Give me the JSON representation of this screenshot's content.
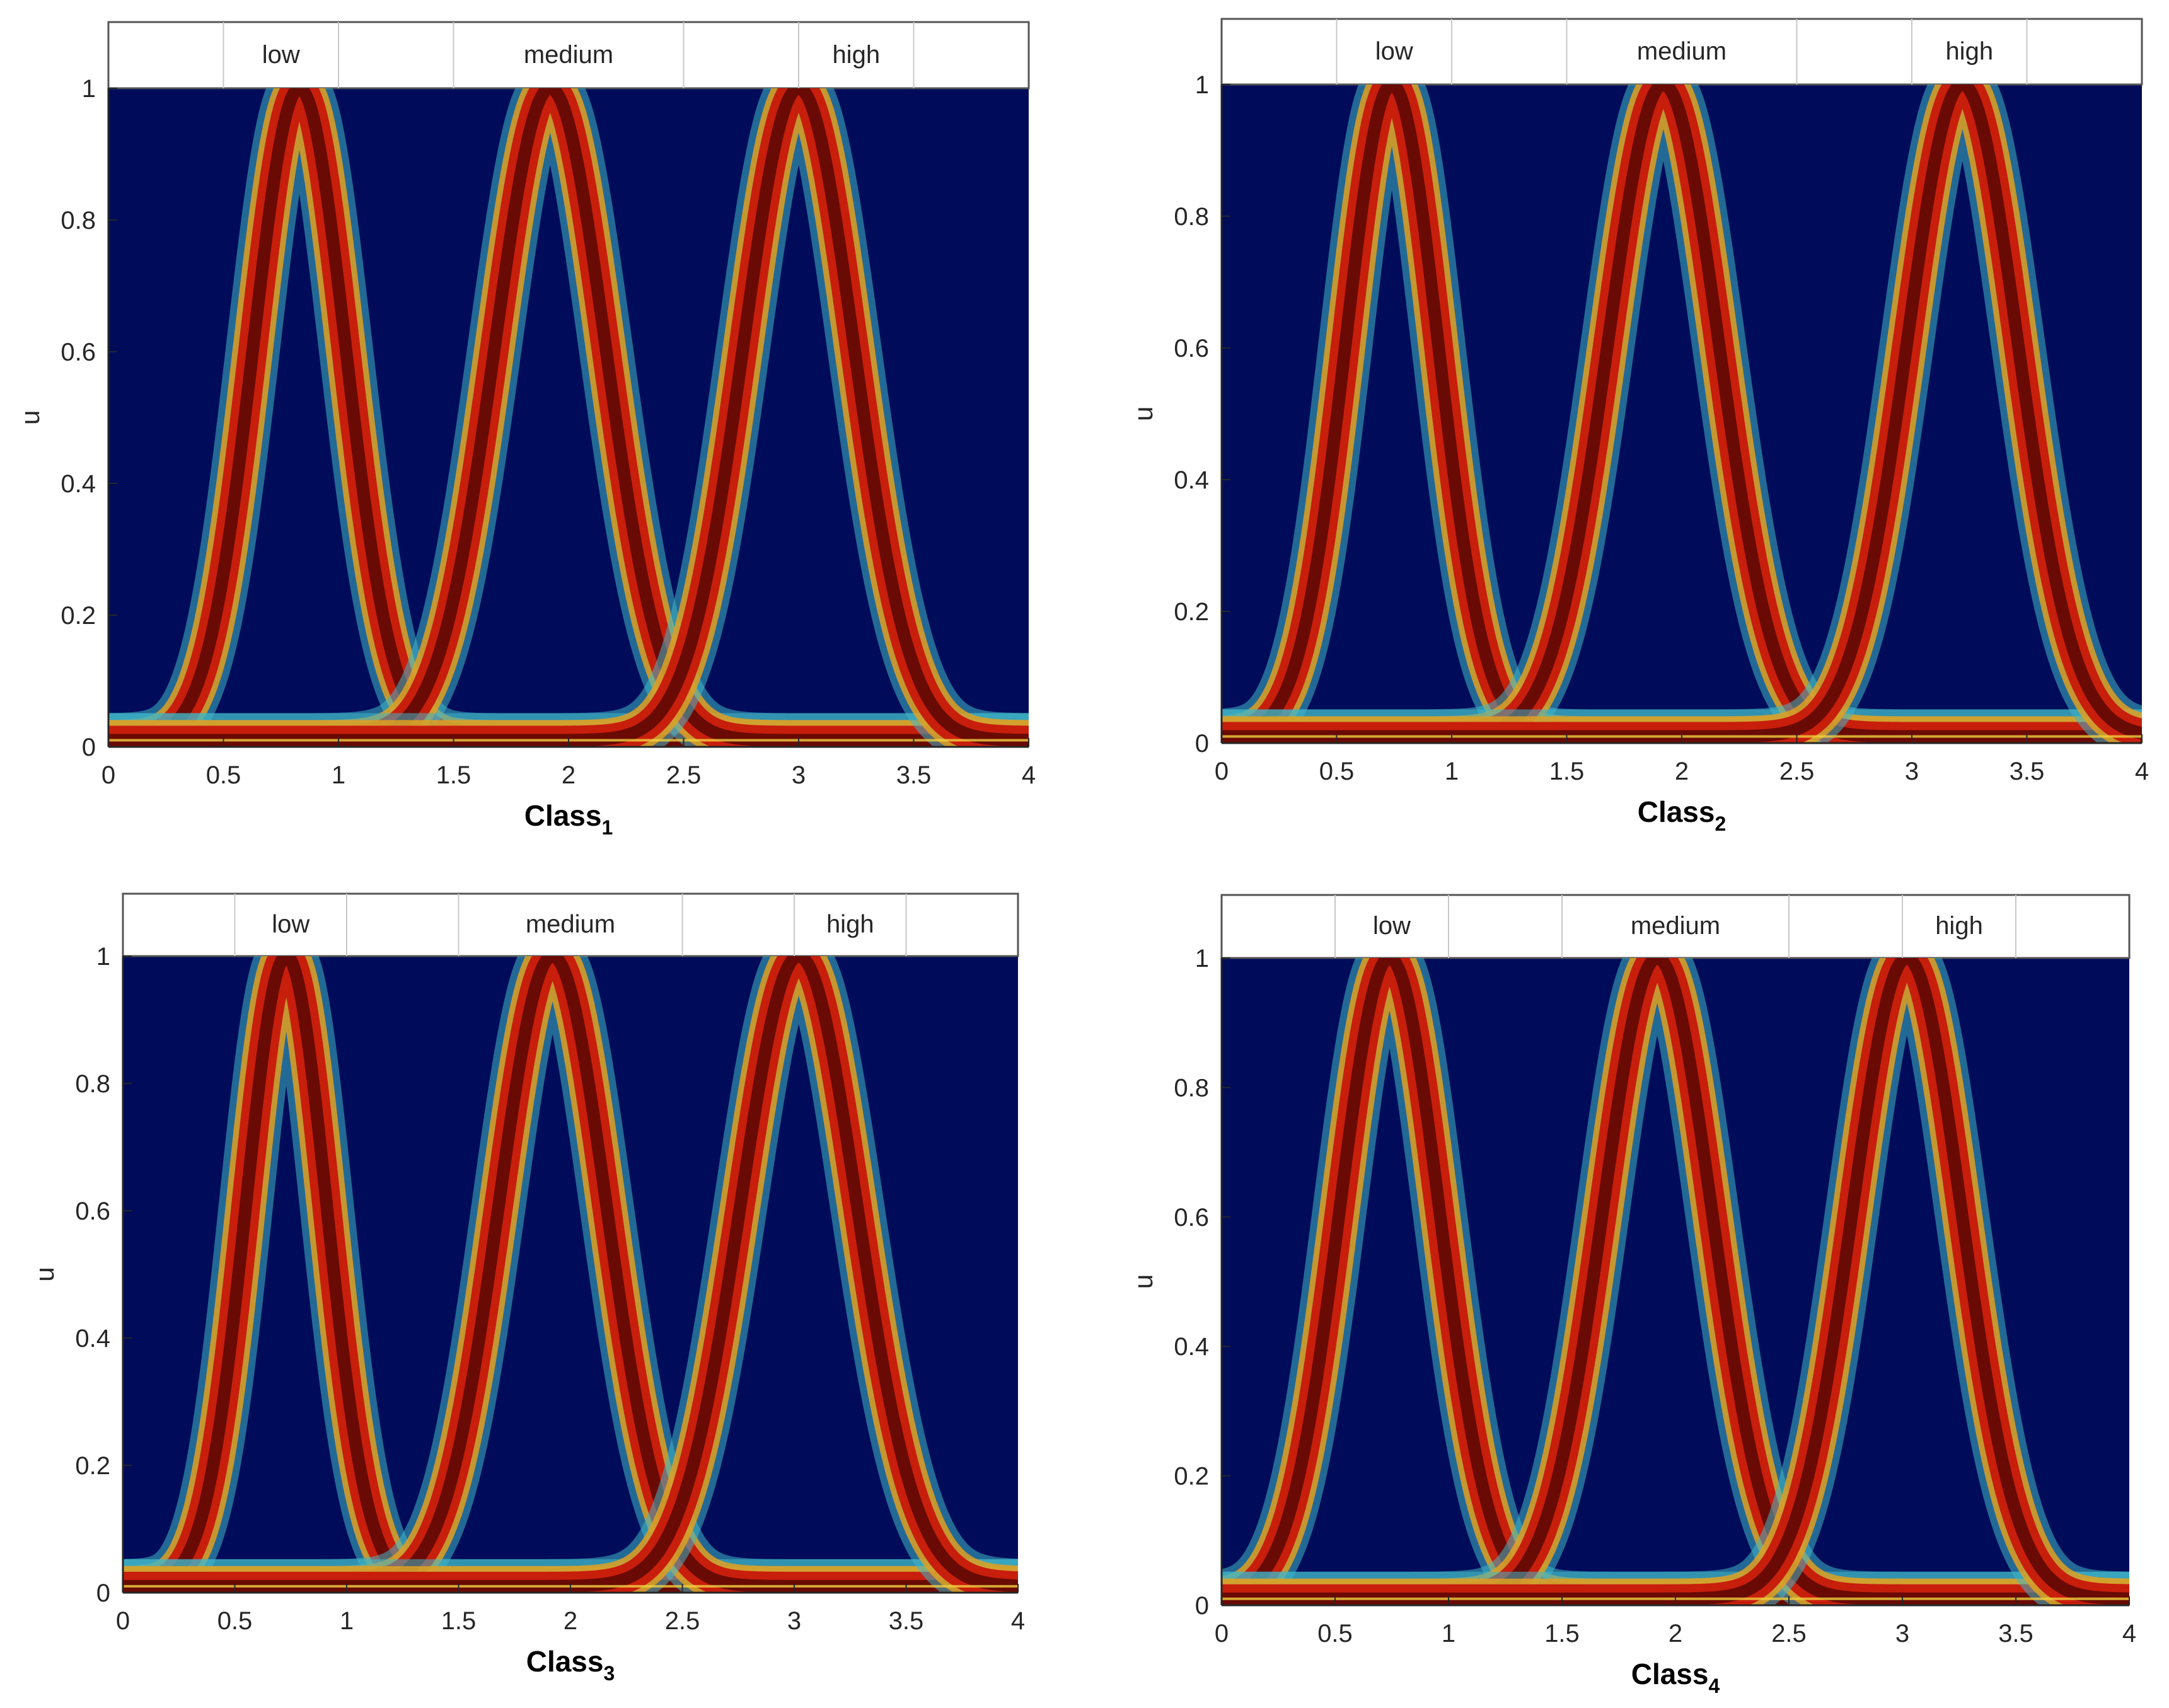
{
  "chart_data": [
    {
      "type": "area",
      "xlabel_base": "Class",
      "xlabel_sub": "1",
      "ylabel": "u",
      "xlim": [
        0,
        4
      ],
      "ylim": [
        0,
        1
      ],
      "xticks": [
        "0",
        "0.5",
        "1",
        "1.5",
        "2",
        "2.5",
        "3",
        "3.5",
        "4"
      ],
      "yticks": [
        "0",
        "0.2",
        "0.4",
        "0.6",
        "0.8",
        "1"
      ],
      "legend": [
        "low",
        "medium",
        "high"
      ],
      "series": [
        {
          "name": "low",
          "center": 0.83,
          "sigma": 0.2
        },
        {
          "name": "medium",
          "center": 1.92,
          "sigma": 0.24
        },
        {
          "name": "high",
          "center": 3.0,
          "sigma": 0.24
        }
      ],
      "baseline": 0.01
    },
    {
      "type": "area",
      "xlabel_base": "Class",
      "xlabel_sub": "2",
      "ylabel": "u",
      "xlim": [
        0,
        4
      ],
      "ylim": [
        0,
        1
      ],
      "xticks": [
        "0",
        "0.5",
        "1",
        "1.5",
        "2",
        "2.5",
        "3",
        "3.5",
        "4"
      ],
      "yticks": [
        "0",
        "0.2",
        "0.4",
        "0.6",
        "0.8",
        "1"
      ],
      "legend": [
        "low",
        "medium",
        "high"
      ],
      "series": [
        {
          "name": "low",
          "center": 0.74,
          "sigma": 0.2
        },
        {
          "name": "medium",
          "center": 1.92,
          "sigma": 0.24
        },
        {
          "name": "high",
          "center": 3.22,
          "sigma": 0.24
        }
      ],
      "baseline": 0.01
    },
    {
      "type": "area",
      "xlabel_base": "Class",
      "xlabel_sub": "3",
      "ylabel": "u",
      "xlim": [
        0,
        4
      ],
      "ylim": [
        0,
        1
      ],
      "xticks": [
        "0",
        "0.5",
        "1",
        "1.5",
        "2",
        "2.5",
        "3",
        "3.5",
        "4"
      ],
      "yticks": [
        "0",
        "0.2",
        "0.4",
        "0.6",
        "0.8",
        "1"
      ],
      "legend": [
        "low",
        "medium",
        "high"
      ],
      "series": [
        {
          "name": "low",
          "center": 0.73,
          "sigma": 0.18
        },
        {
          "name": "medium",
          "center": 1.92,
          "sigma": 0.24
        },
        {
          "name": "high",
          "center": 3.02,
          "sigma": 0.26
        }
      ],
      "baseline": 0.01
    },
    {
      "type": "area",
      "xlabel_base": "Class",
      "xlabel_sub": "4",
      "ylabel": "u",
      "xlim": [
        0,
        4
      ],
      "ylim": [
        0,
        1
      ],
      "xticks": [
        "0",
        "0.5",
        "1",
        "1.5",
        "2",
        "2.5",
        "3",
        "3.5",
        "4"
      ],
      "yticks": [
        "0",
        "0.2",
        "0.4",
        "0.6",
        "0.8",
        "1"
      ],
      "legend": [
        "low",
        "medium",
        "high"
      ],
      "series": [
        {
          "name": "low",
          "center": 0.74,
          "sigma": 0.22
        },
        {
          "name": "medium",
          "center": 1.92,
          "sigma": 0.24
        },
        {
          "name": "high",
          "center": 3.02,
          "sigma": 0.24
        }
      ],
      "baseline": 0.01
    }
  ],
  "colors": {
    "background": "#000c5a",
    "band_outer": "#3fb6c8",
    "band_mid": "#e0a020",
    "band_inner": "#c81e0c",
    "band_core": "#6a0a04",
    "baseline": "#f0d040"
  }
}
